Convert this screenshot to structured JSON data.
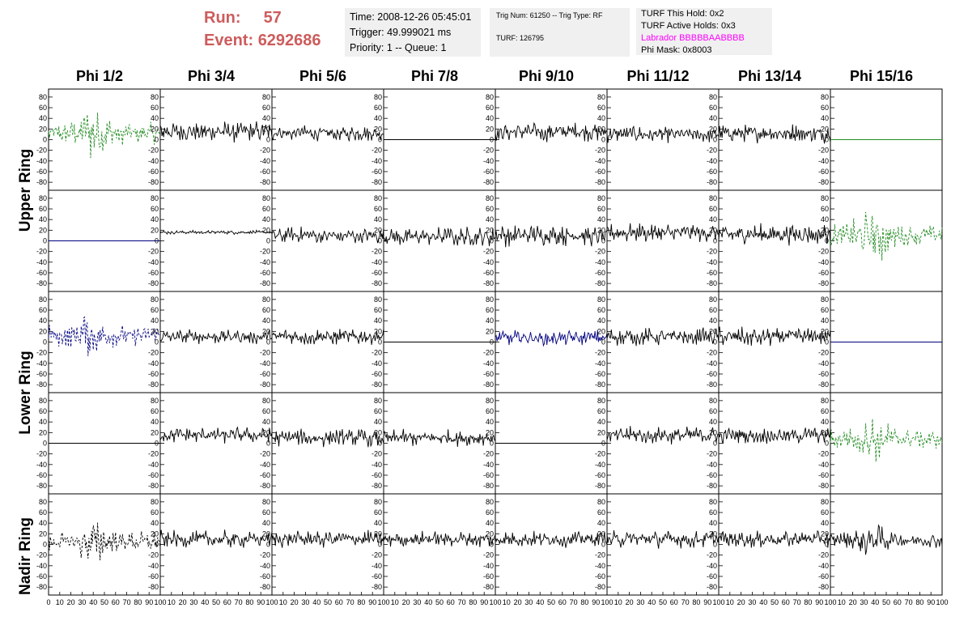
{
  "header": {
    "run_label": "Run:",
    "run_value": "57",
    "event_label": "Event:",
    "event_value": "6292686",
    "time": "Time: 2008-12-26 05:45:01",
    "trigger": "Trigger: 49.999021 ms",
    "priority": "Priority: 1 -- Queue: 1",
    "trig_num": "Trig Num: 61250 -- Trig Type: RF",
    "turf": "TURF: 126795",
    "turf_hold": "TURF This Hold: 0x2",
    "turf_active": "TURF Active Holds: 0x3",
    "labrador": "Labrador BBBBBAABBBB",
    "phi_mask": "Phi Mask: 0x8003"
  },
  "colors": {
    "header_accent": "#cd5c5c",
    "labrador": "#ff00ff",
    "green_trace": "#228b22",
    "blue_trace": "#000080",
    "black_trace": "#000000"
  },
  "chart_data": {
    "type": "line",
    "grid": false,
    "phi_columns": [
      "Phi 1/2",
      "Phi 3/4",
      "Phi 5/6",
      "Phi 7/8",
      "Phi 9/10",
      "Phi 11/12",
      "Phi 13/14",
      "Phi 15/16"
    ],
    "ring_labels": [
      "Upper Ring",
      "Lower Ring",
      "Nadir Ring"
    ],
    "xlim": [
      0,
      100
    ],
    "ylim": [
      -95,
      95
    ],
    "y_ticks": [
      80,
      60,
      40,
      20,
      0,
      -20,
      -40,
      -60,
      -80
    ],
    "x_ticks": [
      0,
      10,
      20,
      30,
      40,
      50,
      60,
      70,
      80,
      90,
      100
    ],
    "panels": [
      [
        {
          "style": "dashed",
          "color": "green",
          "amp": 40,
          "offset": 12,
          "pulse": 40
        },
        {
          "style": "solid",
          "color": "black",
          "amp": 22,
          "offset": 15,
          "pulse": 0
        },
        {
          "style": "solid",
          "color": "black",
          "amp": 16,
          "offset": 12,
          "pulse": 0
        },
        {
          "style": "flat",
          "color": "black",
          "amp": 0,
          "offset": 0,
          "pulse": 0
        },
        {
          "style": "solid",
          "color": "black",
          "amp": 20,
          "offset": 15,
          "pulse": 0
        },
        {
          "style": "solid",
          "color": "black",
          "amp": 17,
          "offset": 10,
          "pulse": 0
        },
        {
          "style": "solid",
          "color": "black",
          "amp": 20,
          "offset": 12,
          "pulse": 0
        },
        {
          "style": "flat",
          "color": "green",
          "amp": 0,
          "offset": 0,
          "pulse": 0
        }
      ],
      [
        {
          "style": "flat",
          "color": "blue",
          "amp": 0,
          "offset": 0,
          "pulse": 0
        },
        {
          "style": "solid",
          "color": "black",
          "amp": 4,
          "offset": 16,
          "pulse": 0
        },
        {
          "style": "solid",
          "color": "black",
          "amp": 18,
          "offset": 10,
          "pulse": 0
        },
        {
          "style": "solid",
          "color": "black",
          "amp": 20,
          "offset": 8,
          "pulse": 0
        },
        {
          "style": "solid",
          "color": "black",
          "amp": 22,
          "offset": 10,
          "pulse": 0
        },
        {
          "style": "solid",
          "color": "black",
          "amp": 20,
          "offset": 15,
          "pulse": 0
        },
        {
          "style": "solid",
          "color": "black",
          "amp": 22,
          "offset": 12,
          "pulse": 0
        },
        {
          "style": "dashed",
          "color": "green",
          "amp": 45,
          "offset": 10,
          "pulse": 38
        }
      ],
      [
        {
          "style": "dashed",
          "color": "blue",
          "amp": 38,
          "offset": 12,
          "pulse": 35
        },
        {
          "style": "solid",
          "color": "black",
          "amp": 15,
          "offset": 10,
          "pulse": 0
        },
        {
          "style": "solid",
          "color": "black",
          "amp": 18,
          "offset": 10,
          "pulse": 0
        },
        {
          "style": "flat",
          "color": "black",
          "amp": 0,
          "offset": 0,
          "pulse": 0
        },
        {
          "style": "solid",
          "color": "blue",
          "amp": 16,
          "offset": 8,
          "pulse": 0
        },
        {
          "style": "solid",
          "color": "black",
          "amp": 18,
          "offset": 10,
          "pulse": 0
        },
        {
          "style": "solid",
          "color": "black",
          "amp": 20,
          "offset": 10,
          "pulse": 0
        },
        {
          "style": "flat",
          "color": "blue",
          "amp": 0,
          "offset": 0,
          "pulse": 0
        }
      ],
      [
        {
          "style": "flat",
          "color": "black",
          "amp": 0,
          "offset": 0,
          "pulse": 0
        },
        {
          "style": "solid",
          "color": "black",
          "amp": 17,
          "offset": 15,
          "pulse": 0
        },
        {
          "style": "solid",
          "color": "black",
          "amp": 18,
          "offset": 10,
          "pulse": 0
        },
        {
          "style": "solid",
          "color": "black",
          "amp": 17,
          "offset": 10,
          "pulse": 0
        },
        {
          "style": "flat",
          "color": "black",
          "amp": 0,
          "offset": 0,
          "pulse": 0
        },
        {
          "style": "solid",
          "color": "black",
          "amp": 18,
          "offset": 15,
          "pulse": 0
        },
        {
          "style": "solid",
          "color": "black",
          "amp": 18,
          "offset": 15,
          "pulse": 0
        },
        {
          "style": "dashed",
          "color": "green",
          "amp": 35,
          "offset": 8,
          "pulse": 40
        }
      ],
      [
        {
          "style": "dashed",
          "color": "black",
          "amp": 38,
          "offset": 5,
          "pulse": 40
        },
        {
          "style": "solid",
          "color": "black",
          "amp": 18,
          "offset": 10,
          "pulse": 0
        },
        {
          "style": "solid",
          "color": "black",
          "amp": 18,
          "offset": 10,
          "pulse": 0
        },
        {
          "style": "solid",
          "color": "black",
          "amp": 17,
          "offset": 10,
          "pulse": 0
        },
        {
          "style": "solid",
          "color": "black",
          "amp": 17,
          "offset": 10,
          "pulse": 0
        },
        {
          "style": "solid",
          "color": "black",
          "amp": 18,
          "offset": 10,
          "pulse": 0
        },
        {
          "style": "solid",
          "color": "black",
          "amp": 18,
          "offset": 10,
          "pulse": 0
        },
        {
          "style": "solid",
          "color": "black",
          "amp": 28,
          "offset": 8,
          "pulse": 35
        }
      ]
    ]
  }
}
